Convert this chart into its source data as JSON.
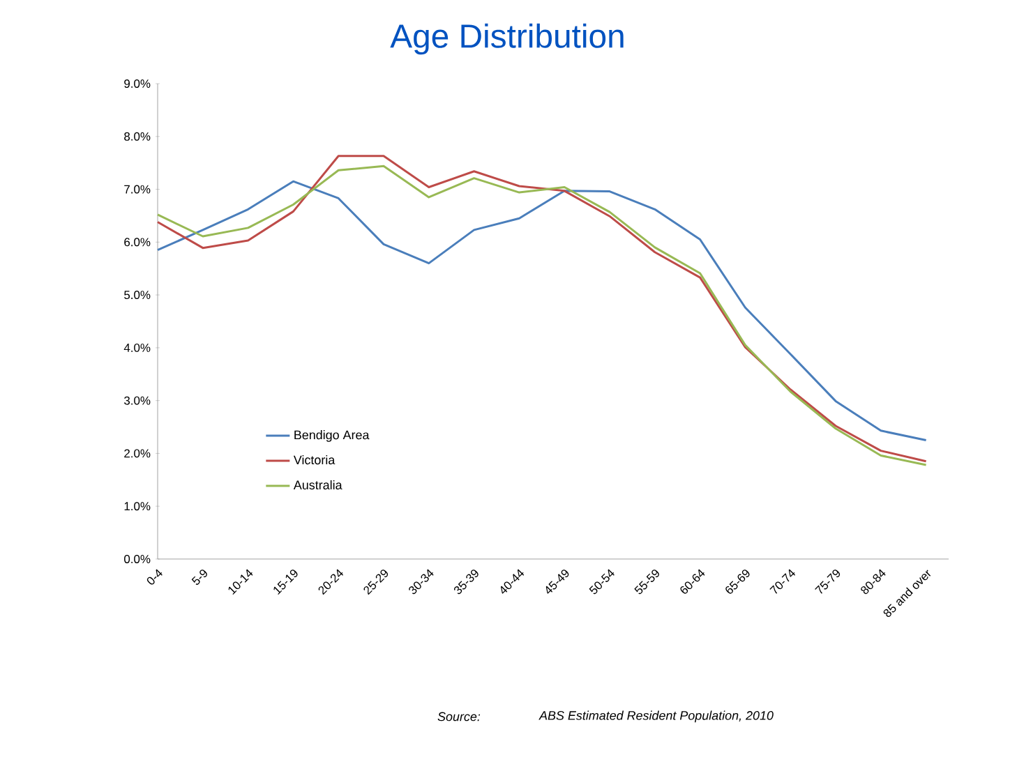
{
  "chart_data": {
    "type": "line",
    "title": "Age Distribution",
    "categories": [
      "0-4",
      "5-9",
      "10-14",
      "15-19",
      "20-24",
      "25-29",
      "30-34",
      "35-39",
      "40-44",
      "45-49",
      "50-54",
      "55-59",
      "60-64",
      "65-69",
      "70-74",
      "75-79",
      "80-84",
      "85 and over"
    ],
    "series": [
      {
        "name": "Bendigo Area",
        "color": "#4a7ebb",
        "values": [
          5.85,
          6.23,
          6.62,
          7.15,
          6.83,
          5.96,
          5.6,
          6.23,
          6.45,
          6.97,
          6.96,
          6.62,
          6.05,
          4.76,
          3.88,
          2.99,
          2.43,
          2.25
        ]
      },
      {
        "name": "Victoria",
        "color": "#be4b48",
        "values": [
          6.38,
          5.89,
          6.03,
          6.58,
          7.63,
          7.63,
          7.04,
          7.34,
          7.06,
          6.97,
          6.49,
          5.81,
          5.33,
          4.01,
          3.21,
          2.52,
          2.05,
          1.85
        ]
      },
      {
        "name": "Australia",
        "color": "#98b954",
        "values": [
          6.52,
          6.11,
          6.27,
          6.71,
          7.36,
          7.44,
          6.85,
          7.21,
          6.94,
          7.04,
          6.57,
          5.9,
          5.41,
          4.05,
          3.17,
          2.47,
          1.96,
          1.78
        ]
      }
    ],
    "ylim": [
      0,
      9
    ],
    "yticks": [
      {
        "value": 0,
        "label": "0.0%"
      },
      {
        "value": 1,
        "label": "1.0%"
      },
      {
        "value": 2,
        "label": "2.0%"
      },
      {
        "value": 3,
        "label": "3.0%"
      },
      {
        "value": 4,
        "label": "4.0%"
      },
      {
        "value": 5,
        "label": "5.0%"
      },
      {
        "value": 6,
        "label": "6.0%"
      },
      {
        "value": 7,
        "label": "7.0%"
      },
      {
        "value": 8,
        "label": "8.0%"
      },
      {
        "value": 9,
        "label": "9.0%"
      }
    ],
    "legend": "bottom left",
    "annotations": [
      "Source:",
      "ABS Estimated Resident Population, 2010"
    ]
  }
}
